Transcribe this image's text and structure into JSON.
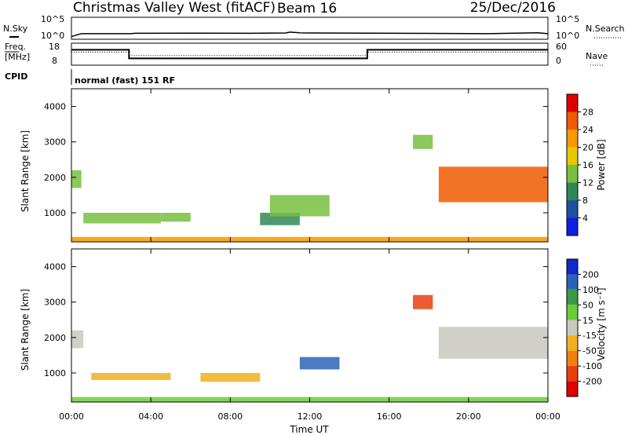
{
  "header": {
    "station": "Christmas Valley West (fitACF)",
    "beam": "Beam 16",
    "date": "25/Dec/2016"
  },
  "panels": {
    "noise": {
      "left_label": "N.Sky",
      "right_label": "N.Search",
      "left_ticks": [
        "10^5",
        "10^0"
      ],
      "right_ticks": [
        "10^5",
        "10^0"
      ]
    },
    "freq": {
      "left_label_1": "Freq.",
      "left_label_2": "[MHz]",
      "right_label": "Nave",
      "left_ticks": [
        "18",
        "8"
      ],
      "right_ticks": [
        "60",
        "0"
      ]
    },
    "cpid": {
      "label": "CPID",
      "text": "normal (fast) 151 RF"
    }
  },
  "x_axis": {
    "label": "Time UT",
    "ticks": [
      "00:00",
      "04:00",
      "08:00",
      "12:00",
      "16:00",
      "20:00",
      "00:00"
    ]
  },
  "colorbars": {
    "power": {
      "label": "Power [dB]",
      "ticks": [
        "28",
        "24",
        "20",
        "16",
        "12",
        "8",
        "4"
      ],
      "colors": [
        "#e00000",
        "#f05a00",
        "#f59a00",
        "#e8c800",
        "#78c040",
        "#308858",
        "#2050a0",
        "#1020e0"
      ]
    },
    "velocity": {
      "label": "Velocity [m s⁻¹]",
      "ticks": [
        "200",
        "100",
        "50",
        "15",
        "-15",
        "-50",
        "-100",
        "-200"
      ],
      "colors": [
        "#1028c8",
        "#2a64b8",
        "#3a9a48",
        "#6ccc38",
        "#c8c8c0",
        "#f0b020",
        "#f08010",
        "#e84010",
        "#e00000"
      ]
    }
  },
  "chart_data": [
    {
      "type": "line",
      "panel": "noise",
      "y_scale": "log",
      "ylim": [
        1,
        100000
      ],
      "xlim_hours": [
        0,
        24
      ],
      "series": [
        {
          "x": [
            0,
            0.5,
            3,
            3.2,
            6,
            9,
            10.8,
            11,
            11.5,
            12,
            15,
            18,
            21,
            23.5,
            24
          ],
          "y": [
            2,
            12,
            12,
            15,
            16,
            15,
            18,
            30,
            20,
            18,
            16,
            14,
            12,
            20,
            12
          ]
        }
      ]
    },
    {
      "type": "line",
      "panel": "freq",
      "ylim": [
        8,
        18
      ],
      "y2lim": [
        0,
        60
      ],
      "series": [
        {
          "x": [
            0,
            2.9,
            2.9,
            14.9,
            14.9,
            24
          ],
          "y": [
            16,
            16,
            11,
            11,
            16,
            16
          ]
        },
        {
          "x": [
            0,
            2.9,
            2.9,
            14.9,
            14.9,
            24
          ],
          "y2": [
            40,
            40,
            28,
            28,
            40,
            40
          ]
        }
      ]
    },
    {
      "type": "heatmap",
      "panel": "power",
      "x_label": "Time UT",
      "y_label": "Slant Range [km]",
      "ylim": [
        180,
        4500
      ],
      "y_ticks": [
        1000,
        2000,
        3000,
        4000
      ],
      "regions": [
        {
          "t": [
            0.0,
            0.5
          ],
          "r": [
            1700,
            2200
          ],
          "value": 14
        },
        {
          "t": [
            0.6,
            4.5
          ],
          "r": [
            700,
            1000
          ],
          "value": 12
        },
        {
          "t": [
            4.5,
            6.0
          ],
          "r": [
            750,
            1000
          ],
          "value": 14
        },
        {
          "t": [
            9.5,
            11.5
          ],
          "r": [
            650,
            1000
          ],
          "value": 10
        },
        {
          "t": [
            10.0,
            13.0
          ],
          "r": [
            900,
            1500
          ],
          "value": 14
        },
        {
          "t": [
            17.2,
            18.2
          ],
          "r": [
            2800,
            3200
          ],
          "value": 12
        },
        {
          "t": [
            18.5,
            24.0
          ],
          "r": [
            1300,
            2300
          ],
          "value": 26
        },
        {
          "t": [
            0.0,
            24.0
          ],
          "r": [
            180,
            320
          ],
          "value": 22
        }
      ]
    },
    {
      "type": "heatmap",
      "panel": "velocity",
      "x_label": "Time UT",
      "y_label": "Slant Range [km]",
      "ylim": [
        180,
        4500
      ],
      "y_ticks": [
        1000,
        2000,
        3000,
        4000
      ],
      "regions": [
        {
          "t": [
            0.0,
            0.6
          ],
          "r": [
            1700,
            2200
          ],
          "value": 0
        },
        {
          "t": [
            1.0,
            5.0
          ],
          "r": [
            800,
            1000
          ],
          "value": -40
        },
        {
          "t": [
            6.5,
            9.5
          ],
          "r": [
            750,
            1000
          ],
          "value": -40
        },
        {
          "t": [
            11.5,
            13.5
          ],
          "r": [
            1100,
            1450
          ],
          "value": 150
        },
        {
          "t": [
            17.2,
            18.2
          ],
          "r": [
            2800,
            3200
          ],
          "value": -150
        },
        {
          "t": [
            18.5,
            24.0
          ],
          "r": [
            1400,
            2300
          ],
          "value": 0
        },
        {
          "t": [
            0.0,
            24.0
          ],
          "r": [
            180,
            320
          ],
          "value": 20
        }
      ]
    }
  ]
}
